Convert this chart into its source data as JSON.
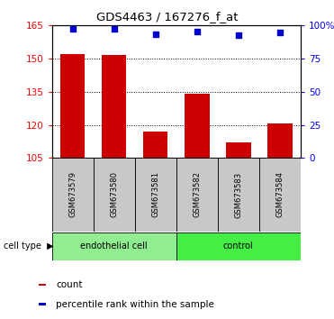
{
  "title": "GDS4463 / 167276_f_at",
  "samples": [
    "GSM673579",
    "GSM673580",
    "GSM673581",
    "GSM673582",
    "GSM673583",
    "GSM673584"
  ],
  "counts": [
    152.0,
    151.5,
    117.0,
    134.0,
    112.0,
    120.5
  ],
  "percentile_ranks": [
    97.5,
    97.5,
    93.5,
    95.5,
    93.0,
    94.5
  ],
  "bar_color": "#cc0000",
  "dot_color": "#0000cc",
  "ylim_left": [
    105,
    165
  ],
  "ylim_right": [
    0,
    100
  ],
  "yticks_left": [
    105,
    120,
    135,
    150,
    165
  ],
  "yticks_right": [
    0,
    25,
    50,
    75,
    100
  ],
  "ytick_labels_right": [
    "0",
    "25",
    "50",
    "75",
    "100%"
  ],
  "grid_ticks": [
    120,
    135,
    150
  ],
  "gray_color": "#c8c8c8",
  "green_light": "#90ee90",
  "green_dark": "#44ee44",
  "legend_count_label": "count",
  "legend_pct_label": "percentile rank within the sample",
  "cell_type_label": "cell type"
}
